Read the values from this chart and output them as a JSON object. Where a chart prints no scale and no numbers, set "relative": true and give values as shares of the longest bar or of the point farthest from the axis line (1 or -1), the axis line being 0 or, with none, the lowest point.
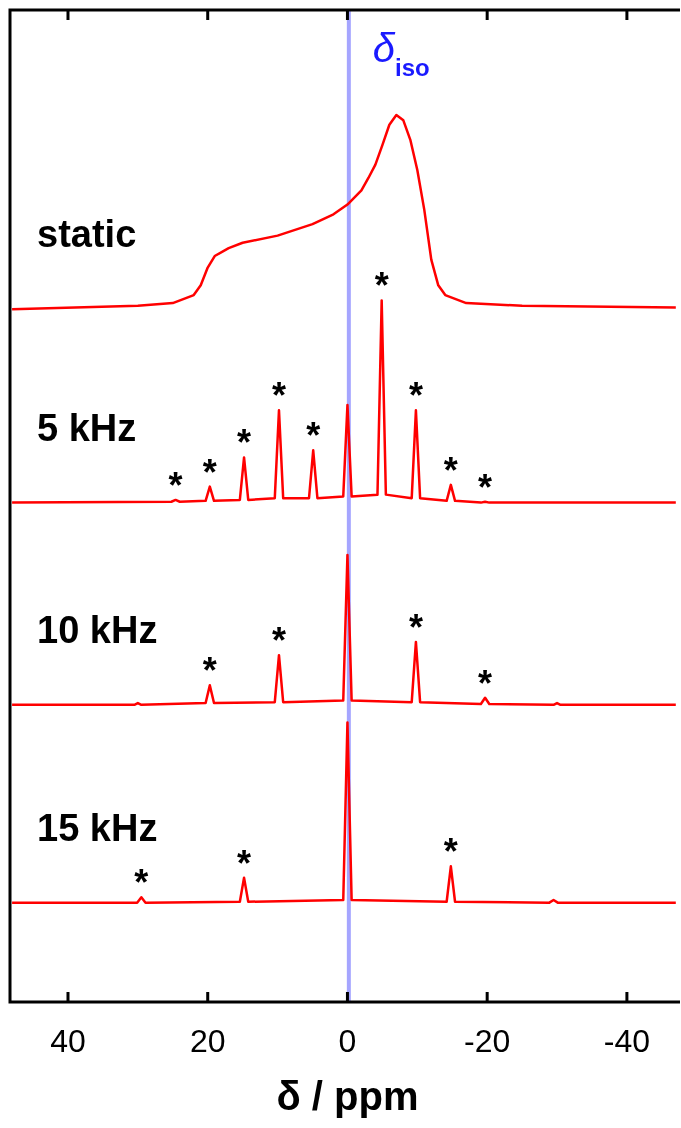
{
  "chart_data": {
    "type": "line",
    "relative": true,
    "xlabel": "δ / ppm",
    "xlim": [
      48.3,
      -47.6
    ],
    "xticks": [
      40,
      20,
      0,
      {
        "value": -20,
        "label": "-20"
      },
      {
        "value": -40,
        "label": "-40"
      }
    ],
    "line_style": "solid",
    "marker": "none",
    "grid": false,
    "series": [
      {
        "name": "static",
        "color": "#ff0000",
        "x": [
          48,
          30,
          25,
          22,
          21,
          20,
          19,
          17,
          15,
          10,
          5,
          2,
          0,
          -2,
          -3,
          -4,
          -5,
          -6,
          -7,
          -8,
          -9,
          -10,
          -11,
          -12,
          -13,
          -14,
          -17,
          -25,
          -47
        ],
        "values": [
          0.781,
          0.785,
          0.788,
          0.797,
          0.808,
          0.828,
          0.841,
          0.85,
          0.856,
          0.864,
          0.877,
          0.888,
          0.899,
          0.915,
          0.929,
          0.944,
          0.966,
          0.989,
          1.0,
          0.994,
          0.972,
          0.938,
          0.893,
          0.837,
          0.808,
          0.797,
          0.788,
          0.785,
          0.783
        ]
      },
      {
        "name": "5 kHz",
        "color": "#ff0000",
        "x": [
          48,
          25.2,
          24.6,
          24,
          20.3,
          19.7,
          19.1,
          15.4,
          14.8,
          14.2,
          10.4,
          9.8,
          9.2,
          5.5,
          4.9,
          4.3,
          0.6,
          0,
          -0.6,
          -4.3,
          -4.9,
          -5.5,
          -9.2,
          -9.8,
          -10.4,
          -14.2,
          -14.8,
          -15.4,
          -19.1,
          -19.7,
          -20.3,
          -47
        ],
        "values": [
          0.563,
          0.564,
          0.566,
          0.564,
          0.565,
          0.581,
          0.565,
          0.566,
          0.614,
          0.566,
          0.568,
          0.667,
          0.568,
          0.568,
          0.622,
          0.568,
          0.57,
          0.673,
          0.57,
          0.572,
          0.791,
          0.572,
          0.568,
          0.667,
          0.568,
          0.565,
          0.583,
          0.565,
          0.563,
          0.564,
          0.563,
          0.563
        ]
      },
      {
        "name": "10 kHz",
        "color": "#ff0000",
        "x": [
          48,
          30.5,
          30,
          29.5,
          20.3,
          19.7,
          19.1,
          10.4,
          9.8,
          9.2,
          0.6,
          0,
          -0.6,
          -9.2,
          -9.8,
          -10.4,
          -19.1,
          -19.7,
          -20.3,
          -29.5,
          -30,
          -30.5,
          -47
        ],
        "values": [
          0.335,
          0.335,
          0.337,
          0.335,
          0.337,
          0.357,
          0.337,
          0.338,
          0.391,
          0.338,
          0.34,
          0.504,
          0.34,
          0.338,
          0.406,
          0.338,
          0.336,
          0.343,
          0.336,
          0.335,
          0.337,
          0.335,
          0.335
        ]
      },
      {
        "name": "15 kHz",
        "color": "#ff0000",
        "x": [
          48,
          30.1,
          29.5,
          28.9,
          15.4,
          14.8,
          14.2,
          0.6,
          0,
          -0.6,
          -14.2,
          -14.8,
          -15.4,
          -28.9,
          -29.5,
          -30.1,
          -47
        ],
        "values": [
          0.112,
          0.112,
          0.118,
          0.112,
          0.113,
          0.14,
          0.113,
          0.115,
          0.315,
          0.115,
          0.113,
          0.153,
          0.113,
          0.112,
          0.115,
          0.112,
          0.112
        ]
      }
    ],
    "ref_lines": [
      {
        "axis": "x",
        "value": -0.2,
        "label": "δ$_{iso}$",
        "color": "#8080ff"
      }
    ],
    "annotations": [
      {
        "text": "*",
        "x": 24.6,
        "y": 0.566
      },
      {
        "text": "*",
        "x": 19.7,
        "y": 0.581
      },
      {
        "text": "*",
        "x": 14.8,
        "y": 0.614
      },
      {
        "text": "*",
        "x": 9.8,
        "y": 0.667
      },
      {
        "text": "*",
        "x": 4.9,
        "y": 0.622
      },
      {
        "text": "*",
        "x": -4.9,
        "y": 0.791
      },
      {
        "text": "*",
        "x": -9.8,
        "y": 0.667
      },
      {
        "text": "*",
        "x": -14.8,
        "y": 0.583
      },
      {
        "text": "*",
        "x": -19.7,
        "y": 0.564
      },
      {
        "text": "*",
        "x": 19.7,
        "y": 0.357
      },
      {
        "text": "*",
        "x": 9.8,
        "y": 0.391
      },
      {
        "text": "*",
        "x": -9.8,
        "y": 0.406
      },
      {
        "text": "*",
        "x": -19.7,
        "y": 0.343
      },
      {
        "text": "*",
        "x": 29.5,
        "y": 0.118
      },
      {
        "text": "*",
        "x": 14.8,
        "y": 0.14
      },
      {
        "text": "*",
        "x": -14.8,
        "y": 0.153
      }
    ]
  }
}
